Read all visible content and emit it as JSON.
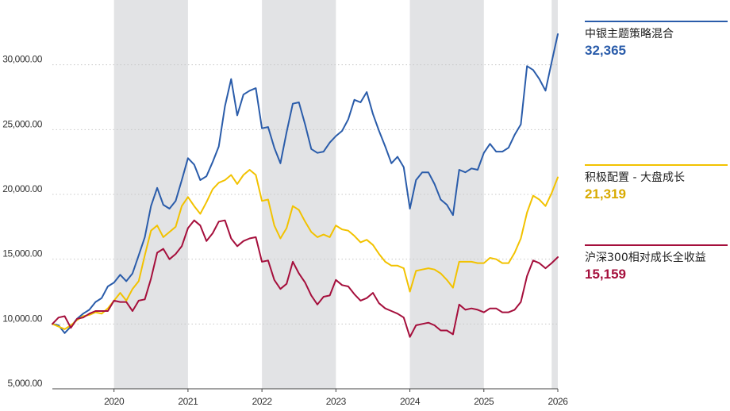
{
  "chart_data": {
    "type": "line",
    "title": "",
    "xlabel": "",
    "ylabel": "",
    "ylim": [
      5000,
      35000
    ],
    "xlim": [
      "2019-03",
      "2026-01"
    ],
    "y_ticks": [
      "5,000.00",
      "10,000.00",
      "15,000.00",
      "20,000.00",
      "25,000.00",
      "30,000.00",
      "35,000.00"
    ],
    "x_ticks": [
      "2020",
      "2021",
      "2022",
      "2023",
      "2024",
      "2025",
      "2026"
    ],
    "grid": "horizontal dotted",
    "shaded_bands": [
      [
        "2020-01",
        "2021-01"
      ],
      [
        "2022-01",
        "2023-01"
      ],
      [
        "2024-01",
        "2025-01"
      ],
      [
        "2025-12",
        "2026-01"
      ]
    ],
    "legend_placement": "right",
    "x": [
      "2019-03",
      "2019-04",
      "2019-05",
      "2019-06",
      "2019-07",
      "2019-08",
      "2019-09",
      "2019-10",
      "2019-11",
      "2019-12",
      "2020-01",
      "2020-02",
      "2020-03",
      "2020-04",
      "2020-05",
      "2020-06",
      "2020-07",
      "2020-08",
      "2020-09",
      "2020-10",
      "2020-11",
      "2020-12",
      "2021-01",
      "2021-02",
      "2021-03",
      "2021-04",
      "2021-05",
      "2021-06",
      "2021-07",
      "2021-08",
      "2021-09",
      "2021-10",
      "2021-11",
      "2021-12",
      "2022-01",
      "2022-02",
      "2022-03",
      "2022-04",
      "2022-05",
      "2022-06",
      "2022-07",
      "2022-08",
      "2022-09",
      "2022-10",
      "2022-11",
      "2022-12",
      "2023-01",
      "2023-02",
      "2023-03",
      "2023-04",
      "2023-05",
      "2023-06",
      "2023-07",
      "2023-08",
      "2023-09",
      "2023-10",
      "2023-11",
      "2023-12",
      "2024-01",
      "2024-02",
      "2024-03",
      "2024-04",
      "2024-05",
      "2024-06",
      "2024-07",
      "2024-08",
      "2024-09",
      "2024-10",
      "2024-11",
      "2024-12",
      "2025-01",
      "2025-02",
      "2025-03",
      "2025-04",
      "2025-05",
      "2025-06",
      "2025-07",
      "2025-08",
      "2025-09",
      "2025-10",
      "2025-11",
      "2025-12",
      "2026-01"
    ],
    "series": [
      {
        "name": "中银主题策略混合",
        "label": "32,365",
        "color": "#2a5caa",
        "values": [
          10000,
          9900,
          9300,
          9800,
          10400,
          10800,
          11100,
          11700,
          12000,
          12900,
          13200,
          13800,
          13300,
          13900,
          15300,
          16700,
          19100,
          20500,
          19200,
          18900,
          19500,
          21100,
          22800,
          22300,
          21100,
          21400,
          22500,
          23700,
          26800,
          28900,
          26100,
          27700,
          28000,
          28200,
          25100,
          25200,
          23600,
          22400,
          24800,
          27000,
          27100,
          25400,
          23500,
          23200,
          23300,
          24000,
          24500,
          24900,
          25800,
          27300,
          27100,
          27900,
          26200,
          24900,
          23700,
          22400,
          22900,
          22100,
          18900,
          21100,
          21700,
          21700,
          20800,
          19600,
          19200,
          18400,
          21900,
          21700,
          22000,
          21900,
          23200,
          23900,
          23300,
          23300,
          23600,
          24600,
          25400,
          29900,
          29600,
          28900,
          28000,
          30200,
          32365
        ]
      },
      {
        "name": "积极配置 - 大盘成长",
        "label": "21,319",
        "color": "#f2c200",
        "values": [
          10000,
          9800,
          9600,
          9900,
          10300,
          10600,
          10700,
          10900,
          10800,
          11200,
          11800,
          12400,
          11800,
          12700,
          13300,
          15300,
          17200,
          17600,
          16700,
          17100,
          17500,
          19100,
          19800,
          19100,
          18500,
          19400,
          20400,
          20900,
          21100,
          21500,
          20800,
          21500,
          21900,
          21500,
          19500,
          19600,
          17600,
          16600,
          17400,
          19100,
          18800,
          17900,
          17100,
          16700,
          16900,
          16700,
          17600,
          17300,
          17200,
          16800,
          16300,
          16500,
          16100,
          15400,
          14800,
          14500,
          14500,
          14300,
          12500,
          14100,
          14200,
          14300,
          14200,
          13900,
          13400,
          12800,
          14800,
          14800,
          14800,
          14700,
          14700,
          15100,
          15000,
          14700,
          14700,
          15500,
          16600,
          18600,
          19900,
          19600,
          19100,
          20100,
          21319
        ]
      },
      {
        "name": "沪深300相对成长全收益",
        "label": "15,159",
        "color": "#a50f3c",
        "values": [
          10000,
          10500,
          10600,
          9700,
          10400,
          10500,
          10800,
          11000,
          11000,
          11000,
          11800,
          11700,
          11700,
          11000,
          11800,
          11900,
          13500,
          15500,
          15800,
          15000,
          15400,
          16000,
          17400,
          18000,
          17600,
          16400,
          17000,
          17900,
          18000,
          16600,
          16000,
          16400,
          16600,
          16700,
          14800,
          14900,
          13400,
          12700,
          13100,
          14800,
          13900,
          13200,
          12200,
          11500,
          12100,
          12200,
          13400,
          13000,
          12900,
          12300,
          11800,
          12000,
          12400,
          11600,
          11200,
          11000,
          10800,
          10500,
          9000,
          9900,
          10000,
          10100,
          9900,
          9500,
          9500,
          9200,
          11500,
          11100,
          11200,
          11100,
          10900,
          11200,
          11200,
          10900,
          10900,
          11100,
          11700,
          13700,
          14900,
          14700,
          14300,
          14700,
          15159
        ]
      }
    ]
  }
}
